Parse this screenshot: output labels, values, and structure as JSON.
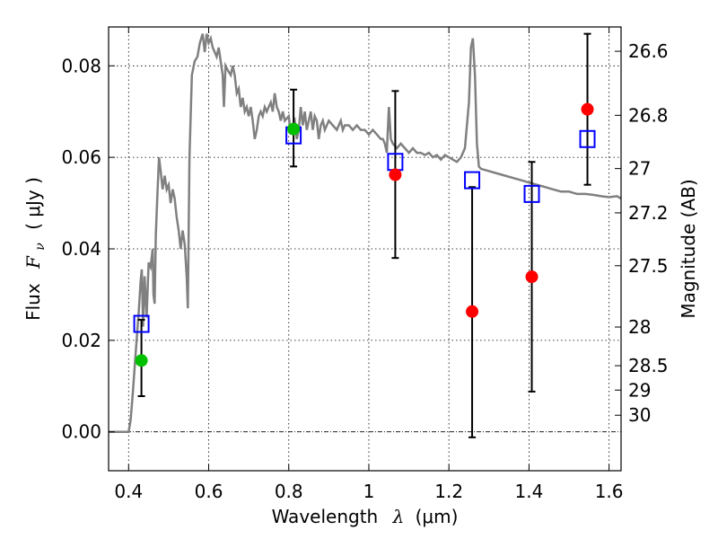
{
  "chart_data": {
    "type": "scatter",
    "title": "",
    "xlabel": "Wavelength",
    "xlabel_math": "λ",
    "xlabel_units": "(μm)",
    "ylabel": "Flux",
    "ylabel_math": "F",
    "ylabel_math_sub": "ν",
    "ylabel_units": "( μJy )",
    "y2label": "Magnitude (AB)",
    "xlim": [
      0.35,
      1.63
    ],
    "ylim": [
      -0.0085,
      0.0885
    ],
    "grid": true,
    "legend": "none",
    "x_ticks": [
      {
        "v": 0.4,
        "label": "0.4"
      },
      {
        "v": 0.6,
        "label": "0.6"
      },
      {
        "v": 0.8,
        "label": "0.8"
      },
      {
        "v": 1.0,
        "label": "1"
      },
      {
        "v": 1.2,
        "label": "1.2"
      },
      {
        "v": 1.4,
        "label": "1.4"
      },
      {
        "v": 1.6,
        "label": "1.6"
      }
    ],
    "y_ticks": [
      {
        "v": 0.0,
        "label": "0.00"
      },
      {
        "v": 0.02,
        "label": "0.02"
      },
      {
        "v": 0.04,
        "label": "0.04"
      },
      {
        "v": 0.06,
        "label": "0.06"
      },
      {
        "v": 0.08,
        "label": "0.08"
      }
    ],
    "mag_ticks": [
      {
        "v": 26.6,
        "label": "26.6"
      },
      {
        "v": 26.8,
        "label": "26.8"
      },
      {
        "v": 27.0,
        "label": "27"
      },
      {
        "v": 27.2,
        "label": "27.2"
      },
      {
        "v": 27.5,
        "label": "27.5"
      },
      {
        "v": 28.0,
        "label": "28"
      },
      {
        "v": 28.5,
        "label": "28.5"
      },
      {
        "v": 29.0,
        "label": "29"
      },
      {
        "v": 30.0,
        "label": "30"
      }
    ],
    "colors": {
      "spectrum": "#808080",
      "model_box": "#0000ff",
      "green": "#00c000",
      "red": "#ff0000",
      "errorbar": "#000000"
    },
    "spectrum": [
      [
        0.35,
        0.0
      ],
      [
        0.4,
        0.0
      ],
      [
        0.405,
        0.0025
      ],
      [
        0.41,
        0.008
      ],
      [
        0.415,
        0.014
      ],
      [
        0.42,
        0.02
      ],
      [
        0.425,
        0.026
      ],
      [
        0.43,
        0.033
      ],
      [
        0.433,
        0.0355
      ],
      [
        0.436,
        0.023
      ],
      [
        0.44,
        0.034
      ],
      [
        0.445,
        0.025
      ],
      [
        0.45,
        0.037
      ],
      [
        0.455,
        0.036
      ],
      [
        0.46,
        0.04
      ],
      [
        0.462,
        0.03
      ],
      [
        0.465,
        0.028
      ],
      [
        0.468,
        0.043
      ],
      [
        0.472,
        0.052
      ],
      [
        0.476,
        0.06
      ],
      [
        0.48,
        0.057
      ],
      [
        0.485,
        0.053
      ],
      [
        0.49,
        0.056
      ],
      [
        0.495,
        0.053
      ],
      [
        0.5,
        0.054
      ],
      [
        0.505,
        0.05
      ],
      [
        0.51,
        0.053
      ],
      [
        0.515,
        0.051
      ],
      [
        0.52,
        0.047
      ],
      [
        0.525,
        0.044
      ],
      [
        0.53,
        0.04
      ],
      [
        0.535,
        0.044
      ],
      [
        0.54,
        0.041
      ],
      [
        0.545,
        0.034
      ],
      [
        0.548,
        0.027
      ],
      [
        0.552,
        0.06
      ],
      [
        0.558,
        0.078
      ],
      [
        0.565,
        0.081
      ],
      [
        0.572,
        0.082
      ],
      [
        0.578,
        0.085
      ],
      [
        0.585,
        0.087
      ],
      [
        0.59,
        0.083
      ],
      [
        0.595,
        0.087
      ],
      [
        0.6,
        0.085
      ],
      [
        0.605,
        0.086
      ],
      [
        0.61,
        0.084
      ],
      [
        0.615,
        0.083
      ],
      [
        0.62,
        0.082
      ],
      [
        0.625,
        0.084
      ],
      [
        0.63,
        0.081
      ],
      [
        0.635,
        0.078
      ],
      [
        0.638,
        0.071
      ],
      [
        0.642,
        0.08
      ],
      [
        0.648,
        0.079
      ],
      [
        0.655,
        0.078
      ],
      [
        0.66,
        0.08
      ],
      [
        0.665,
        0.078
      ],
      [
        0.67,
        0.074
      ],
      [
        0.675,
        0.075
      ],
      [
        0.68,
        0.071
      ],
      [
        0.685,
        0.073
      ],
      [
        0.69,
        0.07
      ],
      [
        0.695,
        0.071
      ],
      [
        0.7,
        0.069
      ],
      [
        0.705,
        0.071
      ],
      [
        0.71,
        0.068
      ],
      [
        0.715,
        0.064
      ],
      [
        0.72,
        0.066
      ],
      [
        0.725,
        0.069
      ],
      [
        0.73,
        0.07
      ],
      [
        0.735,
        0.069
      ],
      [
        0.74,
        0.071
      ],
      [
        0.745,
        0.07
      ],
      [
        0.75,
        0.071
      ],
      [
        0.755,
        0.072
      ],
      [
        0.76,
        0.07
      ],
      [
        0.765,
        0.074
      ],
      [
        0.77,
        0.071
      ],
      [
        0.775,
        0.07
      ],
      [
        0.78,
        0.068
      ],
      [
        0.785,
        0.07
      ],
      [
        0.79,
        0.068
      ],
      [
        0.8,
        0.069
      ],
      [
        0.805,
        0.065
      ],
      [
        0.81,
        0.067
      ],
      [
        0.815,
        0.068
      ],
      [
        0.82,
        0.064
      ],
      [
        0.825,
        0.066
      ],
      [
        0.83,
        0.071
      ],
      [
        0.835,
        0.067
      ],
      [
        0.84,
        0.07
      ],
      [
        0.845,
        0.066
      ],
      [
        0.85,
        0.068
      ],
      [
        0.855,
        0.07
      ],
      [
        0.86,
        0.066
      ],
      [
        0.865,
        0.069
      ],
      [
        0.87,
        0.068
      ],
      [
        0.875,
        0.064
      ],
      [
        0.88,
        0.067
      ],
      [
        0.885,
        0.068
      ],
      [
        0.89,
        0.066
      ],
      [
        0.895,
        0.067
      ],
      [
        0.9,
        0.068
      ],
      [
        0.91,
        0.067
      ],
      [
        0.92,
        0.066
      ],
      [
        0.93,
        0.068
      ],
      [
        0.935,
        0.066
      ],
      [
        0.94,
        0.067
      ],
      [
        0.95,
        0.067
      ],
      [
        0.96,
        0.066
      ],
      [
        0.97,
        0.067
      ],
      [
        0.98,
        0.066
      ],
      [
        0.99,
        0.066
      ],
      [
        1.0,
        0.065
      ],
      [
        1.01,
        0.066
      ],
      [
        1.02,
        0.065
      ],
      [
        1.03,
        0.064
      ],
      [
        1.035,
        0.064
      ],
      [
        1.04,
        0.063
      ],
      [
        1.045,
        0.061
      ],
      [
        1.05,
        0.071
      ],
      [
        1.055,
        0.064
      ],
      [
        1.06,
        0.063
      ],
      [
        1.07,
        0.062
      ],
      [
        1.08,
        0.063
      ],
      [
        1.09,
        0.062
      ],
      [
        1.1,
        0.061
      ],
      [
        1.11,
        0.062
      ],
      [
        1.12,
        0.061
      ],
      [
        1.13,
        0.061
      ],
      [
        1.14,
        0.0605
      ],
      [
        1.15,
        0.061
      ],
      [
        1.16,
        0.06
      ],
      [
        1.17,
        0.0605
      ],
      [
        1.18,
        0.0595
      ],
      [
        1.19,
        0.0605
      ],
      [
        1.2,
        0.06
      ],
      [
        1.21,
        0.0595
      ],
      [
        1.22,
        0.059
      ],
      [
        1.23,
        0.06
      ],
      [
        1.24,
        0.062
      ],
      [
        1.25,
        0.072
      ],
      [
        1.255,
        0.084
      ],
      [
        1.26,
        0.086
      ],
      [
        1.265,
        0.078
      ],
      [
        1.27,
        0.063
      ],
      [
        1.275,
        0.058
      ],
      [
        1.28,
        0.0575
      ],
      [
        1.3,
        0.057
      ],
      [
        1.32,
        0.0565
      ],
      [
        1.34,
        0.056
      ],
      [
        1.36,
        0.0555
      ],
      [
        1.38,
        0.055
      ],
      [
        1.4,
        0.0545
      ],
      [
        1.42,
        0.054
      ],
      [
        1.44,
        0.0535
      ],
      [
        1.46,
        0.053
      ],
      [
        1.48,
        0.0525
      ],
      [
        1.5,
        0.0525
      ],
      [
        1.52,
        0.052
      ],
      [
        1.54,
        0.052
      ],
      [
        1.56,
        0.0518
      ],
      [
        1.58,
        0.0515
      ],
      [
        1.6,
        0.0513
      ],
      [
        1.62,
        0.0515
      ],
      [
        1.63,
        0.051
      ]
    ],
    "model_boxes": [
      {
        "x": 0.432,
        "y": 0.0236
      },
      {
        "x": 0.812,
        "y": 0.0648
      },
      {
        "x": 1.066,
        "y": 0.059
      },
      {
        "x": 1.258,
        "y": 0.055
      },
      {
        "x": 1.407,
        "y": 0.052
      },
      {
        "x": 1.546,
        "y": 0.064
      }
    ],
    "points": [
      {
        "x": 0.432,
        "y": 0.0156,
        "yerr_low": 0.0078,
        "yerr_high": 0.0245,
        "color": "green"
      },
      {
        "x": 0.812,
        "y": 0.0662,
        "yerr_low": 0.058,
        "yerr_high": 0.0748,
        "color": "green"
      },
      {
        "x": 1.066,
        "y": 0.0562,
        "yerr_low": 0.038,
        "yerr_high": 0.0745,
        "color": "red"
      },
      {
        "x": 1.258,
        "y": 0.0263,
        "yerr_low": -0.0012,
        "yerr_high": 0.0535,
        "color": "red"
      },
      {
        "x": 1.407,
        "y": 0.0339,
        "yerr_low": 0.0088,
        "yerr_high": 0.059,
        "color": "red"
      },
      {
        "x": 1.546,
        "y": 0.0705,
        "yerr_low": 0.054,
        "yerr_high": 0.087,
        "color": "red"
      }
    ]
  }
}
